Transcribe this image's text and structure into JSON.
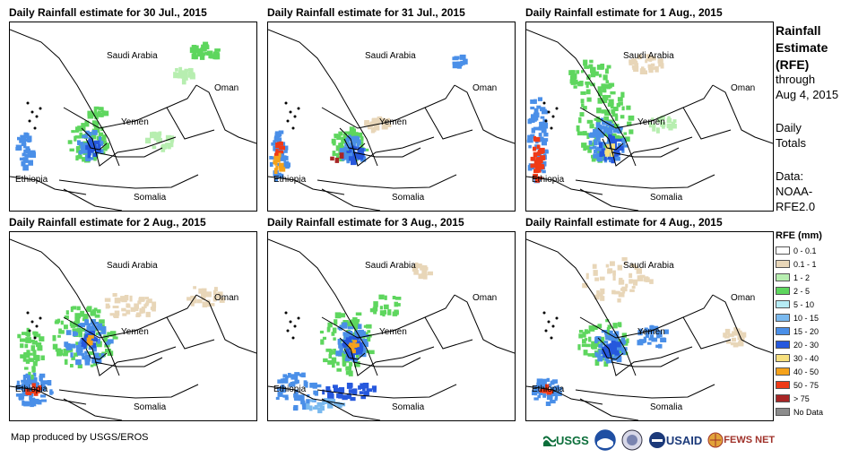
{
  "panels": [
    {
      "title": "Daily Rainfall estimate for 30 Jul., 2015"
    },
    {
      "title": "Daily Rainfall estimate for 31 Jul., 2015"
    },
    {
      "title": "Daily Rainfall estimate for 1 Aug., 2015"
    },
    {
      "title": "Daily Rainfall estimate for 2 Aug., 2015"
    },
    {
      "title": "Daily Rainfall estimate for 3 Aug., 2015"
    },
    {
      "title": "Daily Rainfall estimate for 4 Aug., 2015"
    }
  ],
  "map_labels": {
    "saudi": "Saudi Arabia",
    "oman": "Oman",
    "yemen": "Yemen",
    "ethiopia": "Ethiopia",
    "somalia": "Somalia"
  },
  "sidebar": {
    "title_line1": "Rainfall",
    "title_line2": "Estimate",
    "title_line3": "(RFE)",
    "through_label": "through",
    "through_date": "Aug 4, 2015",
    "totals_line1": "Daily",
    "totals_line2": "Totals",
    "data_line1": "Data:",
    "data_line2": "NOAA-",
    "data_line3": "RFE2.0"
  },
  "legend": {
    "title": "RFE (mm)",
    "items": [
      {
        "label": "0 - 0.1",
        "color": "#ffffff"
      },
      {
        "label": "0.1 - 1",
        "color": "#e8d6b8"
      },
      {
        "label": "1 - 2",
        "color": "#b7eeb0"
      },
      {
        "label": "2 - 5",
        "color": "#5ed65e"
      },
      {
        "label": "5 - 10",
        "color": "#b6ecf5"
      },
      {
        "label": "10 - 15",
        "color": "#79b9ef"
      },
      {
        "label": "15 - 20",
        "color": "#4a8fe8"
      },
      {
        "label": "20 - 30",
        "color": "#2658dd"
      },
      {
        "label": "30 - 40",
        "color": "#f7e07e"
      },
      {
        "label": "40 - 50",
        "color": "#f5a21b"
      },
      {
        "label": "50 - 75",
        "color": "#ef3a17"
      },
      {
        "label": "> 75",
        "color": "#a82626"
      },
      {
        "label": "No Data",
        "color": "#8c8c8c"
      }
    ]
  },
  "footer": {
    "credit": "Map produced by USGS/EROS"
  },
  "logos": {
    "usgs": "USGS",
    "usaid": "USAID",
    "fewsnet": "FEWS NET"
  }
}
